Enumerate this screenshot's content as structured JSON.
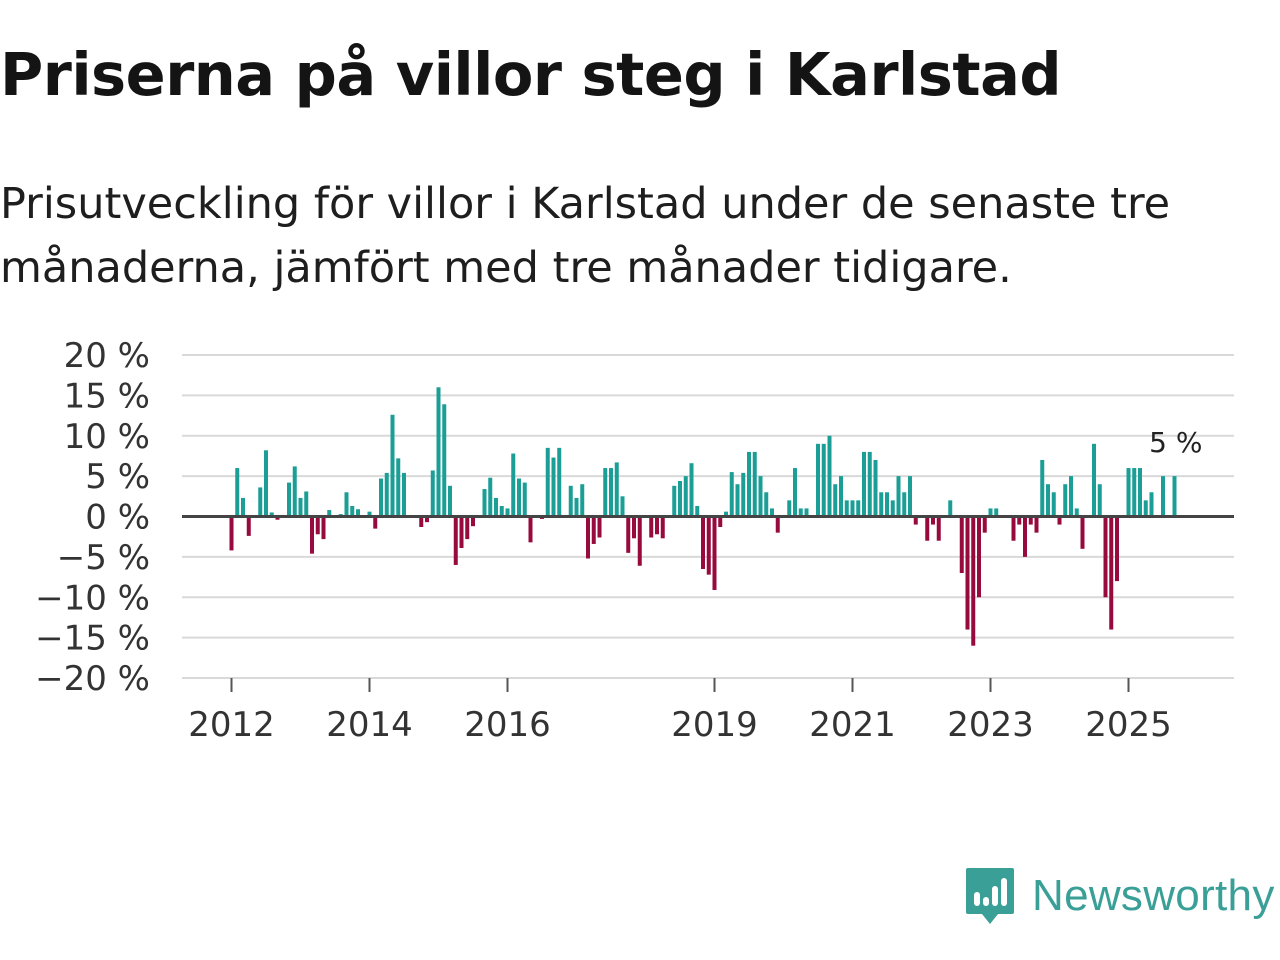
{
  "title": "Priserna på villor steg i Karlstad",
  "subtitle": "Prisutveckling för villor i Karlstad under de senaste tre månaderna, jämfört med tre månader tidigare.",
  "brand": {
    "name": "Newsworthy",
    "icon": "newsworthy-logo-icon",
    "color": "#3a9f97"
  },
  "colors": {
    "positive": "#1a9e96",
    "negative": "#980a3d",
    "grid": "#d9d9d9",
    "zero_line": "#444444"
  },
  "chart_data": {
    "type": "bar",
    "title": "",
    "xlabel": "",
    "ylabel": "",
    "ylim": [
      -20,
      20
    ],
    "yticks": [
      20,
      15,
      10,
      5,
      0,
      -5,
      -10,
      -15,
      -20
    ],
    "ytick_labels": [
      "20 %",
      "15 %",
      "10 %",
      "5 %",
      "0 %",
      "−5 %",
      "−10 %",
      "−15 %",
      "−20 %"
    ],
    "xticks": [
      {
        "label": "2012",
        "year": 2012
      },
      {
        "label": "2014",
        "year": 2014
      },
      {
        "label": "2016",
        "year": 2016
      },
      {
        "label": "2019",
        "year": 2019
      },
      {
        "label": "2021",
        "year": 2021
      },
      {
        "label": "2023",
        "year": 2023
      },
      {
        "label": "2025",
        "year": 2025
      }
    ],
    "start": {
      "year": 2011,
      "month": 9
    },
    "end": {
      "year": 2025,
      "month": 12
    },
    "annotation": {
      "label": "5 %",
      "series_point": "last"
    },
    "points": [
      {
        "date": "2012-01",
        "value": -4.2
      },
      {
        "date": "2012-02",
        "value": 6.0
      },
      {
        "date": "2012-03",
        "value": 2.3
      },
      {
        "date": "2012-04",
        "value": -2.4
      },
      {
        "date": "2012-06",
        "value": 3.6
      },
      {
        "date": "2012-07",
        "value": 8.2
      },
      {
        "date": "2012-08",
        "value": 0.5
      },
      {
        "date": "2012-09",
        "value": -0.4
      },
      {
        "date": "2012-11",
        "value": 4.2
      },
      {
        "date": "2012-12",
        "value": 6.2
      },
      {
        "date": "2013-01",
        "value": 2.3
      },
      {
        "date": "2013-02",
        "value": 3.1
      },
      {
        "date": "2013-03",
        "value": -4.6
      },
      {
        "date": "2013-04",
        "value": -2.2
      },
      {
        "date": "2013-05",
        "value": -2.8
      },
      {
        "date": "2013-06",
        "value": 0.8
      },
      {
        "date": "2013-08",
        "value": 0.3
      },
      {
        "date": "2013-09",
        "value": 3.0
      },
      {
        "date": "2013-10",
        "value": 1.3
      },
      {
        "date": "2013-11",
        "value": 0.9
      },
      {
        "date": "2014-01",
        "value": 0.6
      },
      {
        "date": "2014-02",
        "value": -1.5
      },
      {
        "date": "2014-03",
        "value": 4.7
      },
      {
        "date": "2014-04",
        "value": 5.4
      },
      {
        "date": "2014-05",
        "value": 12.6
      },
      {
        "date": "2014-06",
        "value": 7.2
      },
      {
        "date": "2014-07",
        "value": 5.4
      },
      {
        "date": "2014-10",
        "value": -1.3
      },
      {
        "date": "2014-11",
        "value": -0.7
      },
      {
        "date": "2014-12",
        "value": 5.7
      },
      {
        "date": "2015-01",
        "value": 16.0
      },
      {
        "date": "2015-02",
        "value": 13.9
      },
      {
        "date": "2015-03",
        "value": 3.8
      },
      {
        "date": "2015-04",
        "value": -6.0
      },
      {
        "date": "2015-05",
        "value": -3.9
      },
      {
        "date": "2015-06",
        "value": -2.8
      },
      {
        "date": "2015-07",
        "value": -1.2
      },
      {
        "date": "2015-09",
        "value": 3.4
      },
      {
        "date": "2015-10",
        "value": 4.8
      },
      {
        "date": "2015-11",
        "value": 2.3
      },
      {
        "date": "2015-12",
        "value": 1.3
      },
      {
        "date": "2016-01",
        "value": 1.0
      },
      {
        "date": "2016-02",
        "value": 7.8
      },
      {
        "date": "2016-03",
        "value": 4.7
      },
      {
        "date": "2016-04",
        "value": 4.2
      },
      {
        "date": "2016-05",
        "value": -3.2
      },
      {
        "date": "2016-07",
        "value": -0.3
      },
      {
        "date": "2016-08",
        "value": 8.5
      },
      {
        "date": "2016-09",
        "value": 7.3
      },
      {
        "date": "2016-10",
        "value": 8.5
      },
      {
        "date": "2016-12",
        "value": 3.8
      },
      {
        "date": "2017-01",
        "value": 2.3
      },
      {
        "date": "2017-02",
        "value": 4.0
      },
      {
        "date": "2017-03",
        "value": -5.2
      },
      {
        "date": "2017-04",
        "value": -3.4
      },
      {
        "date": "2017-05",
        "value": -2.6
      },
      {
        "date": "2017-06",
        "value": 6.0
      },
      {
        "date": "2017-07",
        "value": 6.0
      },
      {
        "date": "2017-08",
        "value": 6.7
      },
      {
        "date": "2017-09",
        "value": 2.5
      },
      {
        "date": "2017-10",
        "value": -4.5
      },
      {
        "date": "2017-11",
        "value": -2.7
      },
      {
        "date": "2017-12",
        "value": -6.1
      },
      {
        "date": "2018-02",
        "value": -2.6
      },
      {
        "date": "2018-03",
        "value": -2.2
      },
      {
        "date": "2018-04",
        "value": -2.7
      },
      {
        "date": "2018-06",
        "value": 3.8
      },
      {
        "date": "2018-07",
        "value": 4.4
      },
      {
        "date": "2018-08",
        "value": 5.0
      },
      {
        "date": "2018-09",
        "value": 6.6
      },
      {
        "date": "2018-10",
        "value": 1.3
      },
      {
        "date": "2018-11",
        "value": -6.5
      },
      {
        "date": "2018-12",
        "value": -7.2
      },
      {
        "date": "2019-01",
        "value": -9.1
      },
      {
        "date": "2019-02",
        "value": -1.3
      },
      {
        "date": "2019-03",
        "value": 0.6
      },
      {
        "date": "2019-04",
        "value": 5.5
      },
      {
        "date": "2019-05",
        "value": 4.0
      },
      {
        "date": "2019-06",
        "value": 5.4
      },
      {
        "date": "2019-07",
        "value": 8.0
      },
      {
        "date": "2019-08",
        "value": 8.0
      },
      {
        "date": "2019-09",
        "value": 5.0
      },
      {
        "date": "2019-10",
        "value": 3.0
      },
      {
        "date": "2019-11",
        "value": 1.0
      },
      {
        "date": "2019-12",
        "value": -2.0
      },
      {
        "date": "2020-02",
        "value": 2.0
      },
      {
        "date": "2020-03",
        "value": 6.0
      },
      {
        "date": "2020-04",
        "value": 1.0
      },
      {
        "date": "2020-05",
        "value": 1.0
      },
      {
        "date": "2020-07",
        "value": 9.0
      },
      {
        "date": "2020-08",
        "value": 9.0
      },
      {
        "date": "2020-09",
        "value": 10.0
      },
      {
        "date": "2020-10",
        "value": 4.0
      },
      {
        "date": "2020-11",
        "value": 5.0
      },
      {
        "date": "2020-12",
        "value": 2.0
      },
      {
        "date": "2021-01",
        "value": 2.0
      },
      {
        "date": "2021-02",
        "value": 2.0
      },
      {
        "date": "2021-03",
        "value": 8.0
      },
      {
        "date": "2021-04",
        "value": 8.0
      },
      {
        "date": "2021-05",
        "value": 7.0
      },
      {
        "date": "2021-06",
        "value": 3.0
      },
      {
        "date": "2021-07",
        "value": 3.0
      },
      {
        "date": "2021-08",
        "value": 2.0
      },
      {
        "date": "2021-09",
        "value": 5.0
      },
      {
        "date": "2021-10",
        "value": 3.0
      },
      {
        "date": "2021-11",
        "value": 5.0
      },
      {
        "date": "2021-12",
        "value": -1.0
      },
      {
        "date": "2022-02",
        "value": -3.0
      },
      {
        "date": "2022-03",
        "value": -1.0
      },
      {
        "date": "2022-04",
        "value": -3.0
      },
      {
        "date": "2022-06",
        "value": 2.0
      },
      {
        "date": "2022-08",
        "value": -7.0
      },
      {
        "date": "2022-09",
        "value": -14.0
      },
      {
        "date": "2022-10",
        "value": -16.0
      },
      {
        "date": "2022-11",
        "value": -10.0
      },
      {
        "date": "2022-12",
        "value": -2.0
      },
      {
        "date": "2023-01",
        "value": 1.0
      },
      {
        "date": "2023-02",
        "value": 1.0
      },
      {
        "date": "2023-05",
        "value": -3.0
      },
      {
        "date": "2023-06",
        "value": -1.0
      },
      {
        "date": "2023-07",
        "value": -5.0
      },
      {
        "date": "2023-08",
        "value": -1.0
      },
      {
        "date": "2023-09",
        "value": -2.0
      },
      {
        "date": "2023-10",
        "value": 7.0
      },
      {
        "date": "2023-11",
        "value": 4.0
      },
      {
        "date": "2023-12",
        "value": 3.0
      },
      {
        "date": "2024-01",
        "value": -1.0
      },
      {
        "date": "2024-02",
        "value": 4.0
      },
      {
        "date": "2024-03",
        "value": 5.0
      },
      {
        "date": "2024-04",
        "value": 1.0
      },
      {
        "date": "2024-05",
        "value": -4.0
      },
      {
        "date": "2024-07",
        "value": 9.0
      },
      {
        "date": "2024-08",
        "value": 4.0
      },
      {
        "date": "2024-09",
        "value": -10.0
      },
      {
        "date": "2024-10",
        "value": -14.0
      },
      {
        "date": "2024-11",
        "value": -8.0
      },
      {
        "date": "2025-01",
        "value": 6.0
      },
      {
        "date": "2025-02",
        "value": 6.0
      },
      {
        "date": "2025-03",
        "value": 6.0
      },
      {
        "date": "2025-04",
        "value": 2.0
      },
      {
        "date": "2025-05",
        "value": 3.0
      },
      {
        "date": "2025-07",
        "value": 5.0
      },
      {
        "date": "2025-09",
        "value": 5.0
      }
    ]
  }
}
